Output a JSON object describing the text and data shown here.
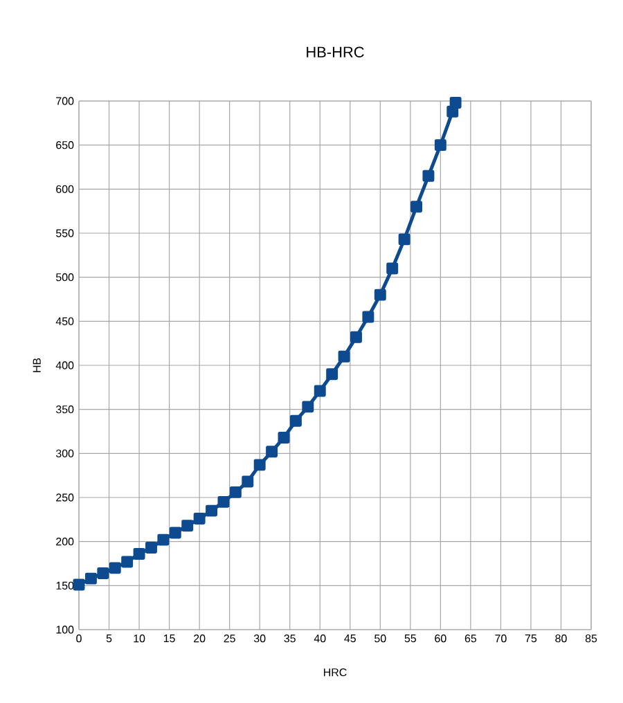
{
  "chart_data": {
    "type": "line",
    "title": "HB-HRC",
    "xlabel": "HRC",
    "ylabel": "HB",
    "xlim": [
      0,
      85
    ],
    "xticks": [
      0,
      5,
      10,
      15,
      20,
      25,
      30,
      35,
      40,
      45,
      50,
      55,
      60,
      65,
      70,
      75,
      80,
      85
    ],
    "ylim": [
      100,
      700
    ],
    "yticks": [
      100,
      150,
      200,
      250,
      300,
      350,
      400,
      450,
      500,
      550,
      600,
      650,
      700
    ],
    "grid": true,
    "marker": "square",
    "line_style": "solid",
    "series": [
      {
        "color": "#0d4a8f",
        "x": [
          0,
          2,
          4,
          6,
          8,
          10,
          12,
          14,
          16,
          18,
          20,
          22,
          24,
          26,
          28,
          30,
          32,
          34,
          36,
          38,
          40,
          42,
          44,
          46,
          48,
          50,
          52,
          54,
          56,
          58,
          60,
          62,
          62.5
        ],
        "values": [
          151,
          158,
          164,
          170,
          177,
          186,
          193,
          202,
          210,
          218,
          226,
          235,
          245,
          256,
          268,
          287,
          302,
          318,
          337,
          353,
          371,
          390,
          410,
          432,
          455,
          480,
          510,
          543,
          580,
          615,
          650,
          688,
          698
        ]
      }
    ]
  }
}
